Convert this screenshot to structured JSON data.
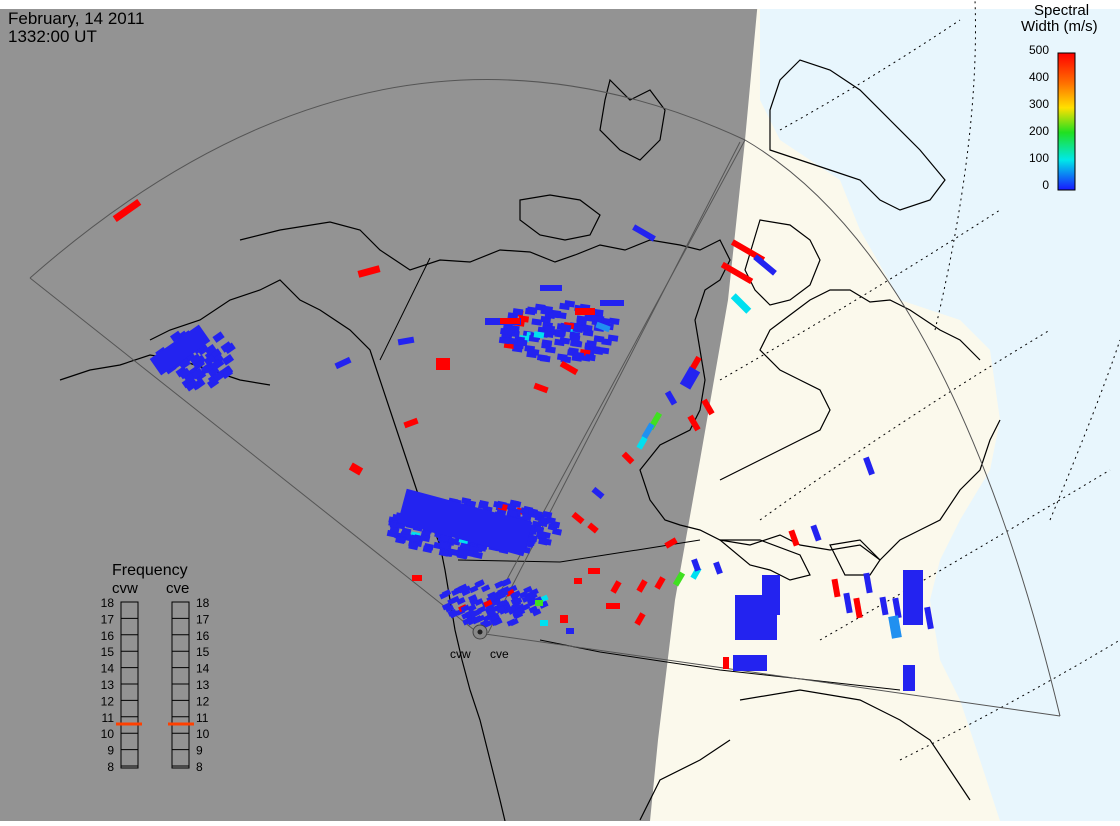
{
  "header": {
    "date": "February, 14 2011",
    "time": "1332:00 UT"
  },
  "colorbar": {
    "title_line1": "Spectral",
    "title_line2": "Width (m/s)",
    "ticks": [
      "500",
      "400",
      "300",
      "200",
      "100",
      "0"
    ],
    "colors": [
      "#ff0000",
      "#ff8000",
      "#ffe000",
      "#20e020",
      "#00e0e0",
      "#2020ff"
    ]
  },
  "frequency_panel": {
    "title": "Frequency",
    "radars": [
      {
        "id": "cvw",
        "label": "cvw",
        "current_mhz": 10.8
      },
      {
        "id": "cve",
        "label": "cve",
        "current_mhz": 10.8
      }
    ],
    "scale": [
      "18",
      "17",
      "16",
      "15",
      "14",
      "13",
      "12",
      "11",
      "10",
      "9",
      "8"
    ],
    "marker_color": "#ff4000"
  },
  "radar_sites": [
    {
      "label": "cvw"
    },
    {
      "label": "cve"
    }
  ],
  "colors": {
    "night": "#939393",
    "day_land": "#fbf9ec",
    "day_ocean": "#e8f6fd",
    "low_width": "#2323f0"
  }
}
